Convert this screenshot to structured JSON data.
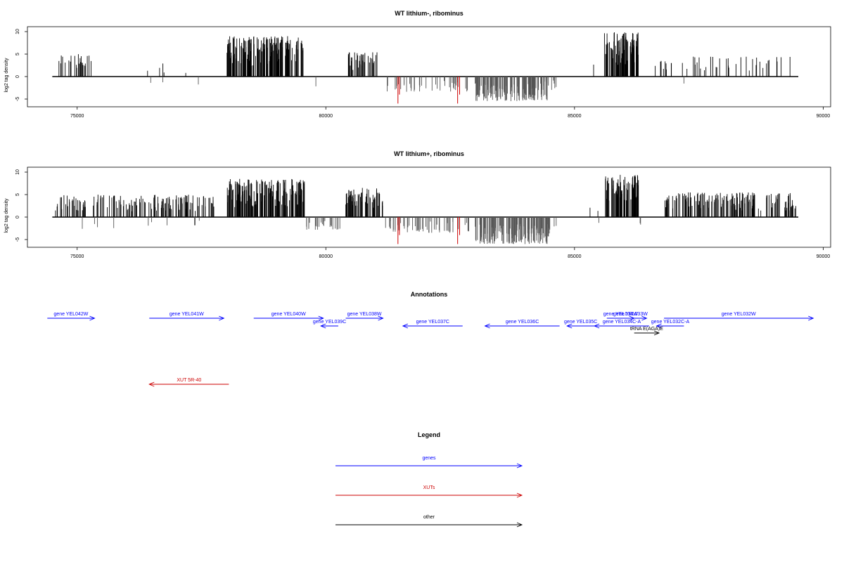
{
  "colors": {
    "positive": "#000000",
    "negative_gray": "#555555",
    "highlight": "#cc0000",
    "gene": "#0000ff",
    "xut": "#cc0000",
    "other": "#000000",
    "axis": "#000000"
  },
  "chart_data": [
    {
      "type": "bar",
      "title": "WT lithium-, ribominus",
      "ylabel": "log2 tag density",
      "xlim": [
        74500,
        89500
      ],
      "ylim": [
        -6,
        10
      ],
      "xticks": [
        75000,
        80000,
        85000,
        90000
      ],
      "yticks": [
        -5,
        0,
        5,
        10
      ],
      "segments": [
        {
          "start": 74550,
          "end": 75300,
          "kind": "pos",
          "max": 5,
          "density": 0.5
        },
        {
          "start": 75950,
          "end": 77800,
          "kind": "pos",
          "max": 3,
          "density": 0.04
        },
        {
          "start": 75950,
          "end": 77800,
          "kind": "neg",
          "max": 2.5,
          "density": 0.02
        },
        {
          "start": 78000,
          "end": 79550,
          "kind": "pos",
          "max": 9,
          "density": 1.6
        },
        {
          "start": 79800,
          "end": 79800,
          "kind": "neg",
          "max": 2.5,
          "density": 1
        },
        {
          "start": 80450,
          "end": 81050,
          "kind": "pos",
          "max": 5.5,
          "density": 1
        },
        {
          "start": 81200,
          "end": 82850,
          "kind": "neg",
          "max": 3.5,
          "density": 0.35
        },
        {
          "start": 83000,
          "end": 84500,
          "kind": "neg",
          "max": 5.5,
          "density": 1.4
        },
        {
          "start": 84150,
          "end": 84650,
          "kind": "neg",
          "max": 3,
          "density": 0.3
        },
        {
          "start": 85150,
          "end": 85450,
          "kind": "pos",
          "max": 3,
          "density": 0.05
        },
        {
          "start": 85600,
          "end": 86300,
          "kind": "pos",
          "max": 10,
          "density": 1.8
        },
        {
          "start": 86600,
          "end": 89450,
          "kind": "pos",
          "max": 4.5,
          "density": 0.22
        },
        {
          "start": 87200,
          "end": 87200,
          "kind": "neg",
          "max": 2,
          "density": 1
        }
      ],
      "highlights": [
        {
          "x": 81450,
          "value": -6
        },
        {
          "x": 81480,
          "value": -4
        },
        {
          "x": 82650,
          "value": -6
        },
        {
          "x": 82690,
          "value": -4
        }
      ]
    },
    {
      "type": "bar",
      "title": "WT lithium+, ribominus",
      "ylabel": "log2 tag density",
      "xlim": [
        74500,
        89500
      ],
      "ylim": [
        -6,
        10
      ],
      "xticks": [
        75000,
        80000,
        85000,
        90000
      ],
      "yticks": [
        -5,
        0,
        5,
        10
      ],
      "segments": [
        {
          "start": 74550,
          "end": 77750,
          "kind": "pos",
          "max": 5,
          "density": 0.7
        },
        {
          "start": 74600,
          "end": 77500,
          "kind": "neg",
          "max": 3,
          "density": 0.05
        },
        {
          "start": 78000,
          "end": 79600,
          "kind": "pos",
          "max": 8.5,
          "density": 1.5
        },
        {
          "start": 79600,
          "end": 80300,
          "kind": "neg",
          "max": 3,
          "density": 0.5
        },
        {
          "start": 80400,
          "end": 81150,
          "kind": "pos",
          "max": 6.5,
          "density": 1.2
        },
        {
          "start": 81200,
          "end": 82900,
          "kind": "neg",
          "max": 3.5,
          "density": 0.45
        },
        {
          "start": 83000,
          "end": 84500,
          "kind": "neg",
          "max": 6,
          "density": 1.5
        },
        {
          "start": 84500,
          "end": 84650,
          "kind": "neg",
          "max": 3,
          "density": 0.3
        },
        {
          "start": 85050,
          "end": 85500,
          "kind": "pos",
          "max": 2.5,
          "density": 0.05
        },
        {
          "start": 85050,
          "end": 85500,
          "kind": "neg",
          "max": 2,
          "density": 0.04
        },
        {
          "start": 85600,
          "end": 86300,
          "kind": "pos",
          "max": 9.5,
          "density": 1.7
        },
        {
          "start": 86250,
          "end": 86350,
          "kind": "neg",
          "max": 2,
          "density": 0.3
        },
        {
          "start": 86800,
          "end": 89450,
          "kind": "pos",
          "max": 5.5,
          "density": 0.9
        }
      ],
      "highlights": [
        {
          "x": 81450,
          "value": -6
        },
        {
          "x": 81480,
          "value": -4
        },
        {
          "x": 82650,
          "value": -6
        },
        {
          "x": 82690,
          "value": -4
        }
      ]
    }
  ],
  "annotations": {
    "title": "Annotations",
    "genes": [
      {
        "label": "gene YEL042W",
        "start": 74400,
        "end": 75350,
        "strand": "+",
        "row": 0
      },
      {
        "label": "gene YEL041W",
        "start": 76450,
        "end": 77950,
        "strand": "+",
        "row": 0
      },
      {
        "label": "gene YEL040W",
        "start": 78550,
        "end": 79950,
        "strand": "+",
        "row": 0
      },
      {
        "label": "gene YEL039C",
        "start": 79900,
        "end": 80250,
        "strand": "-",
        "row": 1
      },
      {
        "label": "gene YEL038W",
        "start": 80400,
        "end": 81150,
        "strand": "+",
        "row": 0
      },
      {
        "label": "gene YEL037C",
        "start": 81550,
        "end": 82750,
        "strand": "-",
        "row": 1
      },
      {
        "label": "gene YEL036C",
        "start": 83200,
        "end": 84700,
        "strand": "-",
        "row": 1
      },
      {
        "label": "gene YEL035C",
        "start": 84850,
        "end": 85400,
        "strand": "-",
        "row": 1
      },
      {
        "label": "gene YEL034W",
        "start": 85650,
        "end": 86200,
        "strand": "+",
        "row": 0
      },
      {
        "label": "gene YEL033W",
        "start": 85800,
        "end": 86450,
        "strand": "+",
        "row": 0
      },
      {
        "label": "gene YEL034C-A",
        "start": 85400,
        "end": 86500,
        "strand": "-",
        "row": 1
      },
      {
        "label": "gene YEL032C-A",
        "start": 86650,
        "end": 87200,
        "strand": "-",
        "row": 1
      },
      {
        "label": "gene YEL032W",
        "start": 86800,
        "end": 89800,
        "strand": "+",
        "row": 0
      }
    ],
    "xuts": [
      {
        "label": "XUT 5R-40",
        "start": 76450,
        "end": 78050,
        "strand": "-",
        "row": 0
      }
    ],
    "other": [
      {
        "label": "tRNA E(AGA)E",
        "start": 86200,
        "end": 86700,
        "strand": "+",
        "row": 2
      }
    ]
  },
  "legend": {
    "title": "Legend",
    "items": [
      {
        "label": "genes",
        "kind": "gene"
      },
      {
        "label": "XUTs",
        "kind": "xut"
      },
      {
        "label": "other",
        "kind": "other"
      }
    ]
  }
}
